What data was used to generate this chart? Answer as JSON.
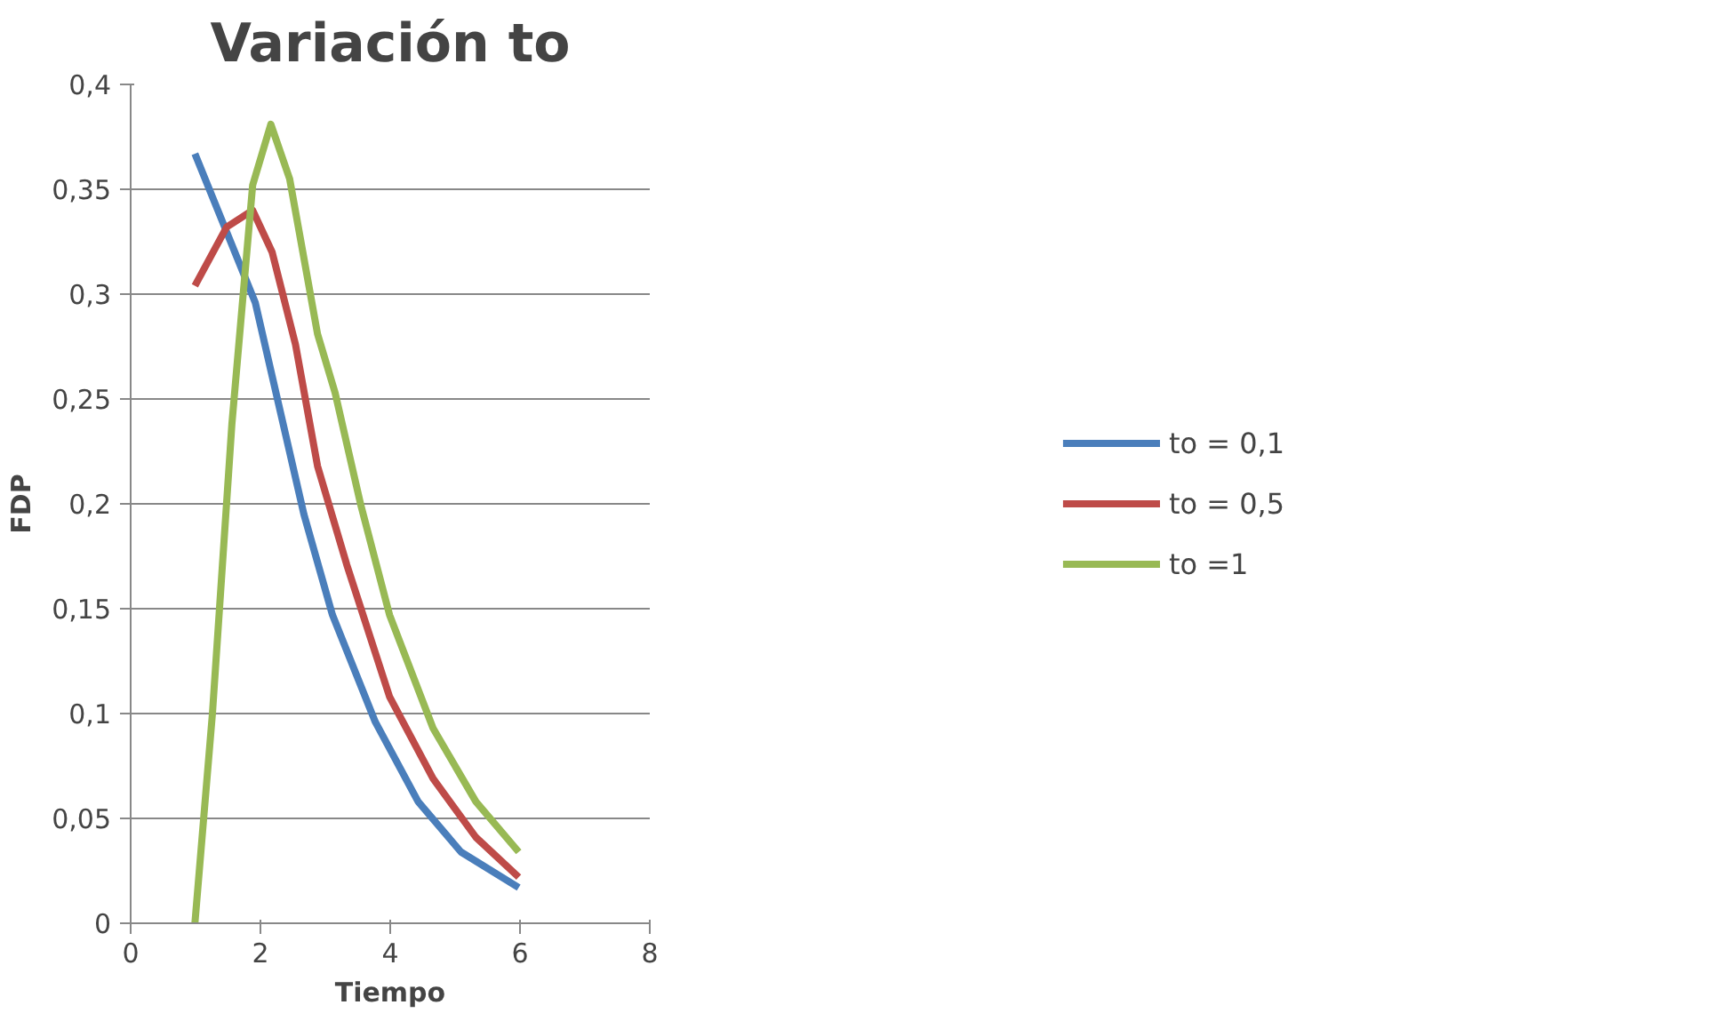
{
  "chart_data": {
    "type": "line",
    "title": "Variación to",
    "xlabel": "Tiempo",
    "ylabel": "FDP",
    "xlim": [
      0,
      8
    ],
    "xticks": [
      0,
      2,
      4,
      6,
      8
    ],
    "ylim": [
      0,
      0.4
    ],
    "yticks": [
      0,
      {
        "value": 0.05,
        "label": "0,05"
      },
      {
        "value": 0.1,
        "label": "0,1"
      },
      {
        "value": 0.15,
        "label": "0,15"
      },
      {
        "value": 0.2,
        "label": "0,2"
      },
      {
        "value": 0.25,
        "label": "0,25"
      },
      {
        "value": 0.3,
        "label": "0,3"
      },
      {
        "value": 0.35,
        "label": "0,35"
      },
      {
        "value": 0.4,
        "label": "0,4"
      }
    ],
    "grid": "y",
    "legend": "right",
    "marker": "none",
    "line_style": "solid",
    "series": [
      {
        "name": "to = 0,1",
        "color": "#4a7ebb",
        "x": [
          0.99,
          1.92,
          2.18,
          2.67,
          3.11,
          3.77,
          4.43,
          5.09,
          5.98
        ],
        "values": [
          0.367,
          0.296,
          0.261,
          0.195,
          0.147,
          0.096,
          0.058,
          0.034,
          0.017
        ]
      },
      {
        "name": "to = 0,5",
        "color": "#be4b48",
        "x": [
          0.99,
          1.48,
          1.88,
          2.18,
          2.54,
          2.88,
          3.33,
          3.99,
          4.66,
          5.32,
          5.98
        ],
        "values": [
          0.304,
          0.332,
          0.34,
          0.32,
          0.276,
          0.218,
          0.171,
          0.108,
          0.069,
          0.041,
          0.022
        ]
      },
      {
        "name": "to =1",
        "color": "#98b954",
        "x": [
          0.99,
          1.26,
          1.56,
          1.88,
          2.16,
          2.45,
          2.88,
          3.15,
          3.55,
          3.99,
          4.66,
          5.32,
          5.98
        ],
        "values": [
          0,
          0.1,
          0.238,
          0.352,
          0.381,
          0.355,
          0.281,
          0.253,
          0.199,
          0.147,
          0.093,
          0.058,
          0.034
        ]
      }
    ]
  }
}
